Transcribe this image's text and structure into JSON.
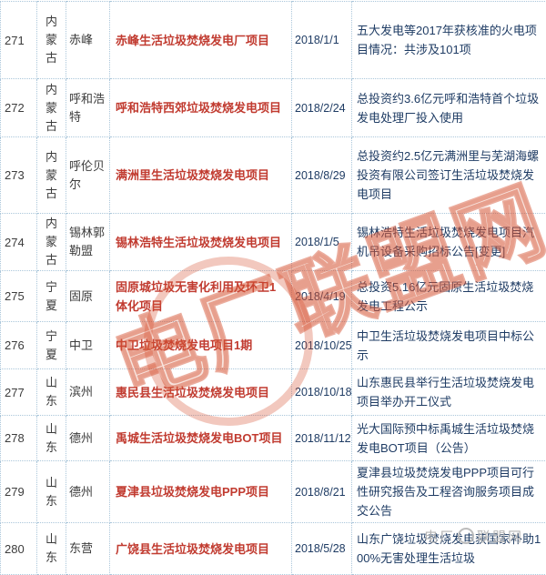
{
  "table": {
    "rows": [
      {
        "no": "271",
        "province": "内蒙古",
        "city": "赤峰",
        "project": "赤峰生活垃圾焚烧发电厂项目",
        "date": "2018/1/1",
        "desc": "五大发电等2017年获核准的火电项目情况：共涉及101项"
      },
      {
        "no": "272",
        "province": "内蒙古",
        "city": "呼和浩特",
        "project": "呼和浩特西郊垃圾焚烧发电项目",
        "date": "2018/2/24",
        "desc": "总投资约3.6亿元呼和浩特首个垃圾发电处理厂投入使用"
      },
      {
        "no": "273",
        "province": "内蒙古",
        "city": "呼伦贝尔",
        "project": "满洲里生活垃圾焚烧发电项目",
        "date": "2018/8/29",
        "desc": "总投资约2.5亿元满洲里与芜湖海螺投资有限公司签订生活垃圾焚烧发电项目"
      },
      {
        "no": "274",
        "province": "内蒙古",
        "city": "锡林郭勒盟",
        "project": "锡林浩特生活垃圾焚烧发电项目",
        "date": "2018/1/5",
        "desc": "锡林浩特生活垃圾焚烧发电项目汽机吊设备采购招标公告[变更]"
      },
      {
        "no": "275",
        "province": "宁夏",
        "city": "固原",
        "project": "固原城垃圾无害化利用及环卫1体化项目",
        "date": "2018/4/19",
        "desc": "总投资5.16亿元固原生活垃圾焚烧发电工程公示"
      },
      {
        "no": "276",
        "province": "宁夏",
        "city": "中卫",
        "project": "中卫垃圾焚烧发电项目1期",
        "date": "2018/10/25",
        "desc": "中卫生活垃圾焚烧发电项目中标公示"
      },
      {
        "no": "277",
        "province": "山东",
        "city": "滨州",
        "project": "惠民县生活垃圾焚烧发电项目",
        "date": "2018/10/18",
        "desc": "山东惠民县举行生活垃圾焚烧发电项目举办开工仪式"
      },
      {
        "no": "278",
        "province": "山东",
        "city": "德州",
        "project": "禹城生活垃圾焚烧发电BOT项目",
        "date": "2018/11/12",
        "desc": "光大国际预中标禹城生活垃圾焚烧发电BOT项目（公告）"
      },
      {
        "no": "279",
        "province": "山东",
        "city": "德州",
        "project": "夏津县垃圾焚烧发电PPP项目",
        "date": "2018/8/21",
        "desc": "夏津县垃圾焚烧发电PPP项目可行性研究报告及工程咨询服务项目成交公告"
      },
      {
        "no": "280",
        "province": "山东",
        "city": "东营",
        "project": "广饶县生活垃圾焚烧发电项目",
        "date": "2018/5/28",
        "desc": "山东广饶垃圾焚烧发电获国家补助100%无害处理生活垃圾"
      }
    ]
  },
  "watermark": {
    "large_text": "电厂联盟网",
    "small_text_left": "电厂",
    "small_text_right": "联盟网"
  },
  "colors": {
    "project_red": "#c13b30",
    "text_navy": "#1f3c64",
    "border_blue": "#aac6da",
    "watermark_orange": "#d65434",
    "watermark_gray": "#b3b3b3"
  }
}
